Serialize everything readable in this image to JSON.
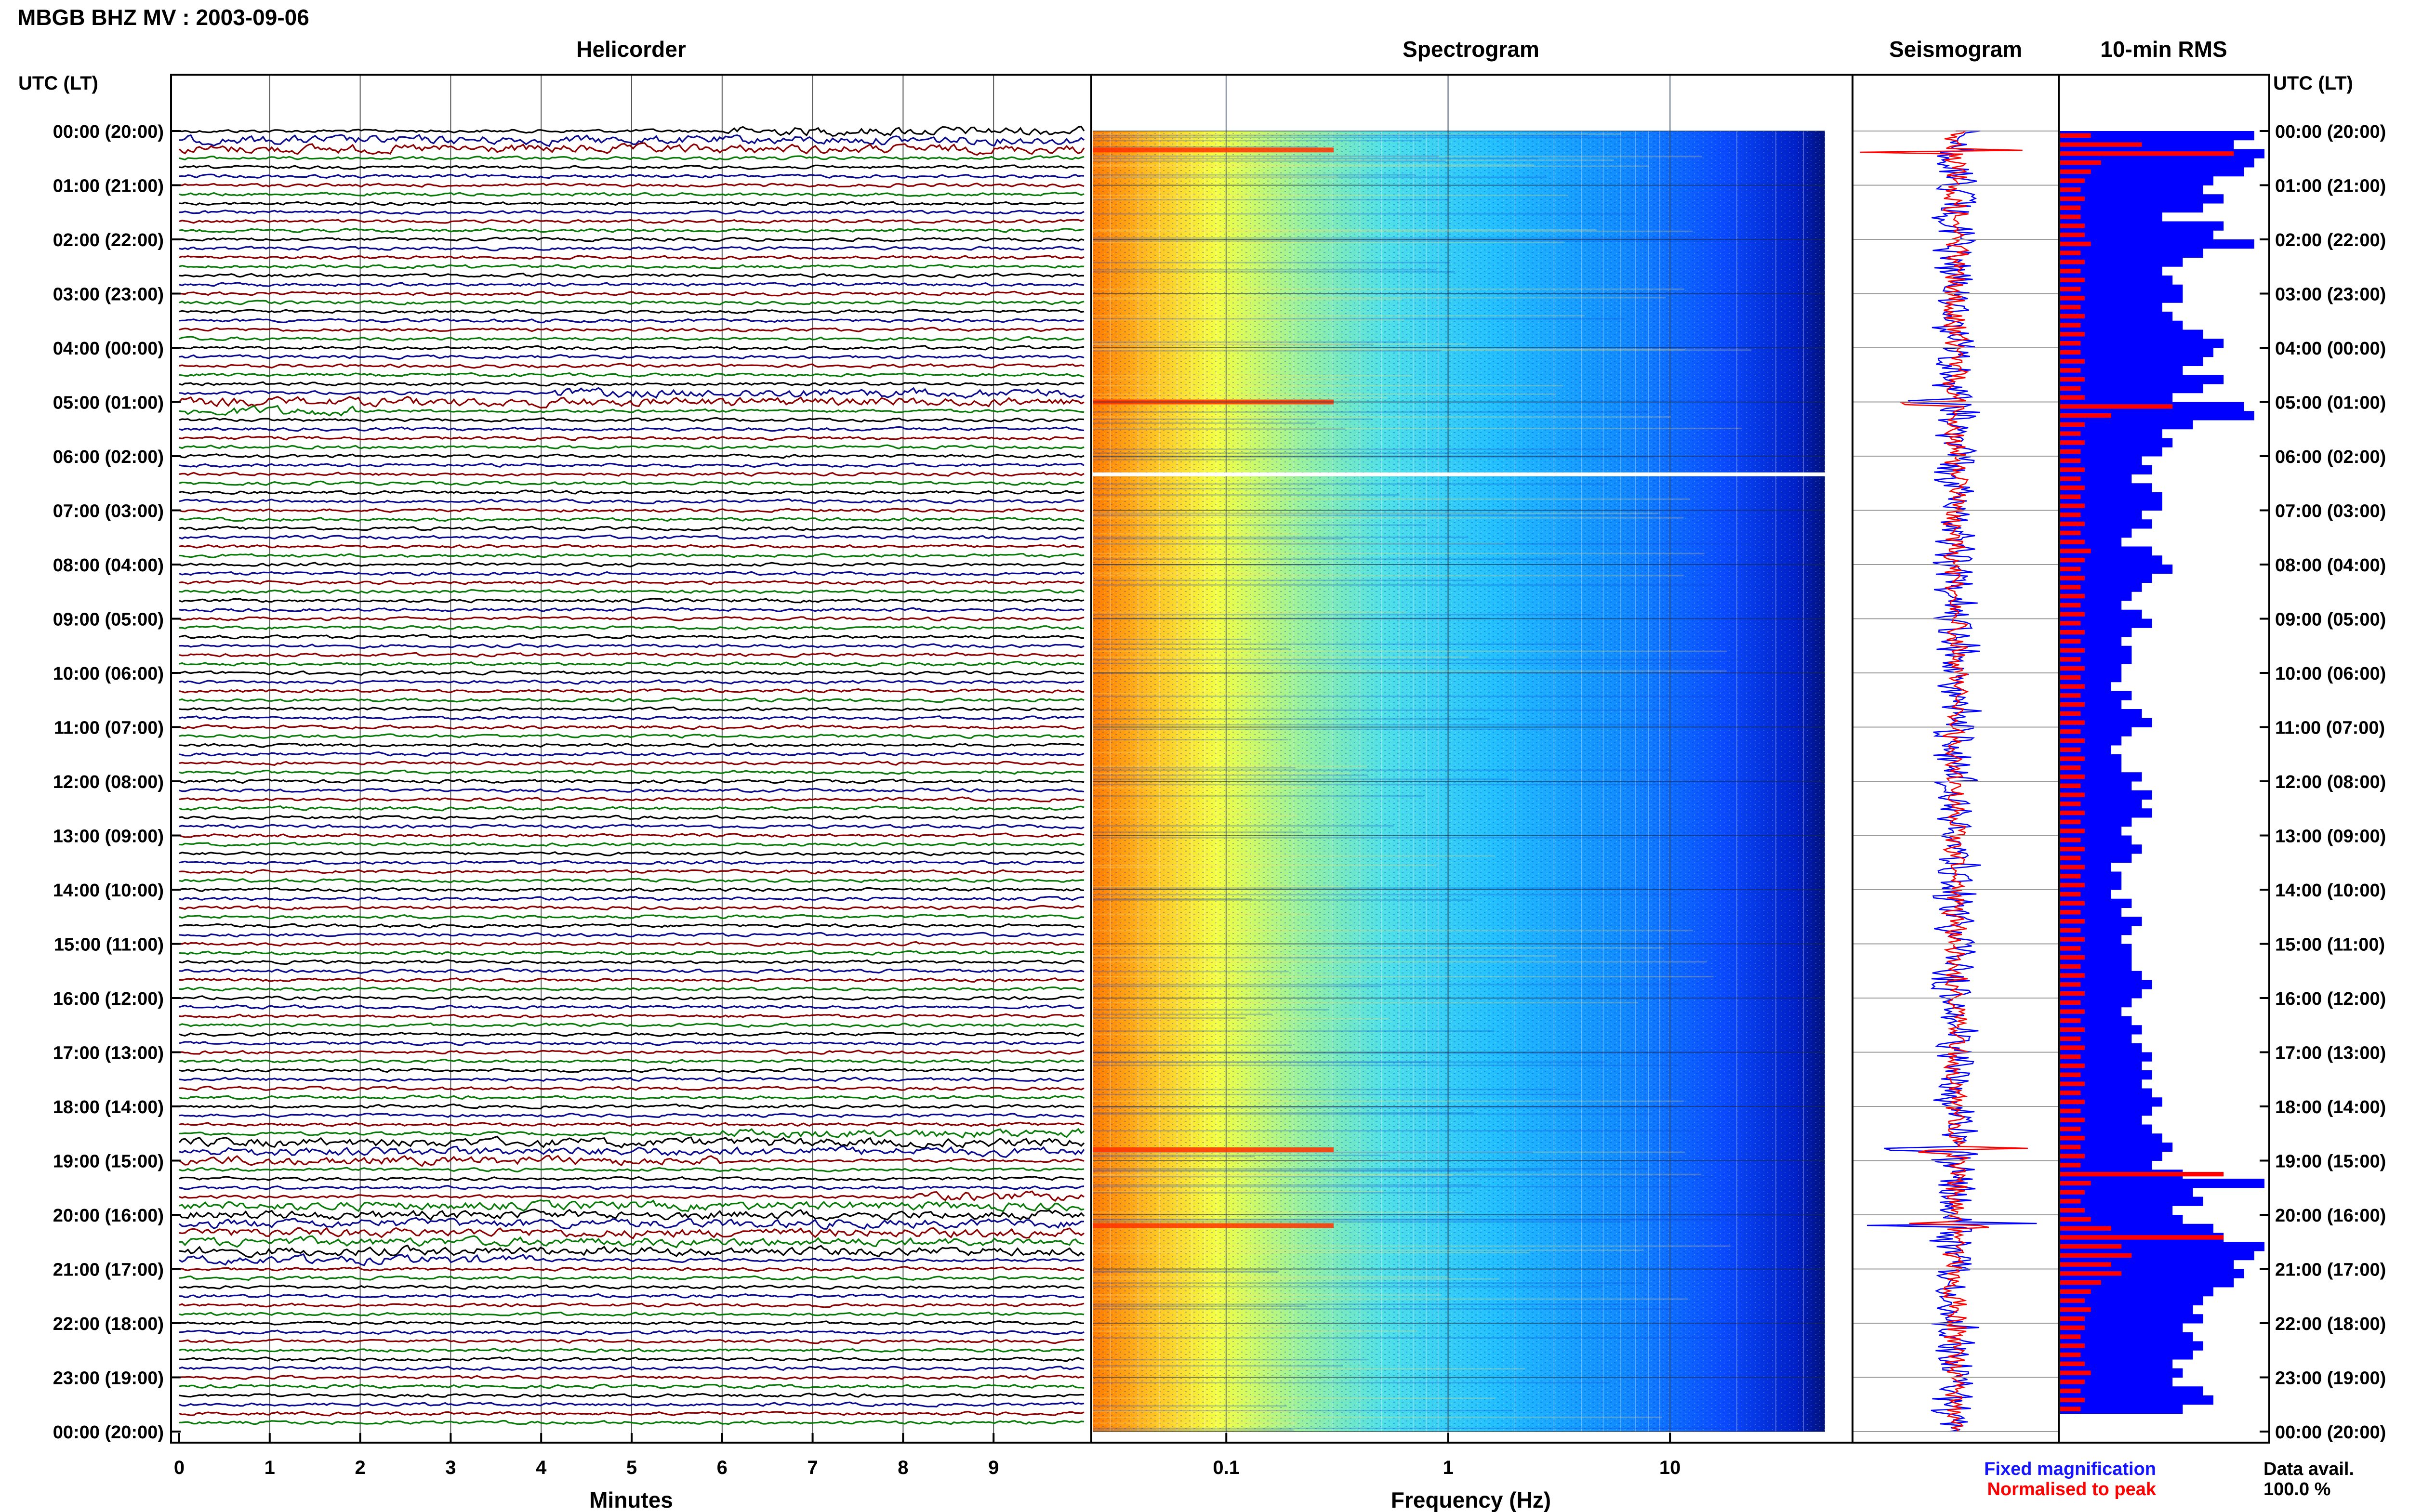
{
  "header": {
    "station_title": "MBGB BHZ MV : 2003-09-06"
  },
  "panels": {
    "helicorder_title": "Helicorder",
    "spectrogram_title": "Spectrogram",
    "seismogram_title": "Seismogram",
    "rms_title": "10-min RMS"
  },
  "axes": {
    "time_axis_label_left": "UTC (LT)",
    "time_axis_label_right": "UTC (LT)",
    "helicorder_xlabel": "Minutes",
    "spectrogram_xlabel": "Frequency (Hz)"
  },
  "legend": {
    "fixed": "Fixed magnification",
    "normalised": "Normalised to peak",
    "fixed_color": "#1414ff",
    "normalised_color": "#ff0000"
  },
  "availability": {
    "label": "Data avail.",
    "value": "100.0 %"
  },
  "colors": {
    "helicorder_trace_cycle": [
      "#000000",
      "#0a0a8c",
      "#8b0000",
      "#0a7a0a"
    ],
    "spectrogram_ramp": [
      "#00007a",
      "#0000ff",
      "#0090ff",
      "#20d8ff",
      "#9cf0a0",
      "#ffff30",
      "#ffb000",
      "#ff3000"
    ],
    "rms_fixed": "#0000ff",
    "rms_normalised": "#ff0000",
    "seismogram_fixed": "#0000ff",
    "seismogram_normalised": "#ff0000"
  },
  "chart_data": [
    {
      "type": "line",
      "panel": "helicorder",
      "title": "Helicorder",
      "xlabel": "Minutes",
      "x_ticks": [
        "0",
        "1",
        "2",
        "3",
        "4",
        "5",
        "6",
        "7",
        "8",
        "9"
      ],
      "xlim": [
        0,
        10
      ],
      "y_tick_labels": [
        "00:00 (20:00)",
        "01:00 (21:00)",
        "02:00 (22:00)",
        "03:00 (23:00)",
        "04:00 (00:00)",
        "05:00 (01:00)",
        "06:00 (02:00)",
        "07:00 (03:00)",
        "08:00 (04:00)",
        "09:00 (05:00)",
        "10:00 (06:00)",
        "11:00 (07:00)",
        "12:00 (08:00)",
        "13:00 (09:00)",
        "14:00 (10:00)",
        "15:00 (11:00)",
        "16:00 (12:00)",
        "17:00 (13:00)",
        "18:00 (14:00)",
        "19:00 (15:00)",
        "20:00 (16:00)",
        "21:00 (17:00)",
        "22:00 (18:00)",
        "23:00 (19:00)",
        "00:00 (20:00)"
      ],
      "lines_per_hour": 6,
      "event_windows_utc_hours": [
        [
          0.1,
          0.5
        ],
        [
          4.9,
          5.2
        ],
        [
          18.6,
          19.1
        ],
        [
          19.8,
          20.9
        ]
      ]
    },
    {
      "type": "heatmap",
      "panel": "spectrogram",
      "title": "Spectrogram",
      "xlabel": "Frequency (Hz)",
      "x_scale": "log",
      "xlim": [
        0.025,
        50
      ],
      "x_tick_labels": [
        "0.1",
        "1",
        "10"
      ],
      "x_tick_values": [
        0.1,
        1,
        10
      ],
      "data_gap_utc_hours": [
        6.3,
        6.4
      ],
      "broadband_events_utc_hours": [
        0.35,
        5.0,
        18.8,
        20.2
      ]
    },
    {
      "type": "line",
      "panel": "seismogram",
      "title": "Seismogram",
      "series": [
        {
          "name": "Fixed magnification"
        },
        {
          "name": "Normalised to peak"
        }
      ],
      "spikes_utc_hours": [
        0.35,
        5.0,
        18.8,
        20.2
      ]
    },
    {
      "type": "bar",
      "panel": "rms",
      "title": "10-min RMS",
      "orientation": "horizontal",
      "bins_per_hour": 6,
      "series": [
        {
          "name": "Fixed magnification",
          "values": [
            0.95,
            0.85,
            1.0,
            0.95,
            0.9,
            0.75,
            0.7,
            0.8,
            0.7,
            0.5,
            0.8,
            0.75,
            0.95,
            0.7,
            0.6,
            0.5,
            0.55,
            0.6,
            0.6,
            0.5,
            0.55,
            0.6,
            0.7,
            0.8,
            0.75,
            0.7,
            0.6,
            0.8,
            0.7,
            0.55,
            0.9,
            0.95,
            0.65,
            0.5,
            0.55,
            0.5,
            0.4,
            0.45,
            0.35,
            0.45,
            0.5,
            0.5,
            0.4,
            0.45,
            0.35,
            0.3,
            0.45,
            0.5,
            0.55,
            0.45,
            0.4,
            0.35,
            0.3,
            0.4,
            0.45,
            0.35,
            0.3,
            0.35,
            0.35,
            0.3,
            0.3,
            0.25,
            0.35,
            0.3,
            0.4,
            0.45,
            0.35,
            0.3,
            0.25,
            0.3,
            0.3,
            0.4,
            0.35,
            0.45,
            0.4,
            0.45,
            0.35,
            0.3,
            0.35,
            0.4,
            0.35,
            0.25,
            0.3,
            0.3,
            0.25,
            0.35,
            0.3,
            0.4,
            0.35,
            0.3,
            0.35,
            0.35,
            0.35,
            0.4,
            0.45,
            0.4,
            0.35,
            0.3,
            0.35,
            0.4,
            0.35,
            0.4,
            0.45,
            0.4,
            0.45,
            0.4,
            0.45,
            0.5,
            0.45,
            0.4,
            0.45,
            0.5,
            0.55,
            0.5,
            0.45,
            0.6,
            1.0,
            0.65,
            0.7,
            0.55,
            0.6,
            0.75,
            0.8,
            1.0,
            0.95,
            0.85,
            0.9,
            0.85,
            0.75,
            0.7,
            0.65,
            0.7,
            0.6,
            0.65,
            0.7,
            0.65,
            0.55,
            0.6,
            0.55,
            0.7,
            0.75,
            0.6
          ],
          "color": "#0000ff"
        },
        {
          "name": "Normalised to peak",
          "values": [
            0.15,
            0.4,
            0.85,
            0.2,
            0.15,
            0.12,
            0.1,
            0.12,
            0.1,
            0.1,
            0.12,
            0.12,
            0.15,
            0.1,
            0.12,
            0.1,
            0.12,
            0.1,
            0.12,
            0.1,
            0.12,
            0.1,
            0.12,
            0.1,
            0.1,
            0.12,
            0.1,
            0.12,
            0.1,
            0.12,
            0.55,
            0.25,
            0.12,
            0.1,
            0.12,
            0.1,
            0.1,
            0.12,
            0.1,
            0.12,
            0.1,
            0.12,
            0.1,
            0.12,
            0.1,
            0.12,
            0.15,
            0.12,
            0.1,
            0.12,
            0.1,
            0.12,
            0.1,
            0.12,
            0.1,
            0.12,
            0.1,
            0.12,
            0.1,
            0.12,
            0.1,
            0.12,
            0.1,
            0.12,
            0.1,
            0.12,
            0.1,
            0.12,
            0.1,
            0.12,
            0.1,
            0.12,
            0.1,
            0.12,
            0.1,
            0.12,
            0.1,
            0.12,
            0.1,
            0.12,
            0.1,
            0.12,
            0.1,
            0.12,
            0.1,
            0.12,
            0.1,
            0.12,
            0.1,
            0.12,
            0.1,
            0.12,
            0.1,
            0.12,
            0.1,
            0.12,
            0.1,
            0.12,
            0.1,
            0.12,
            0.1,
            0.12,
            0.1,
            0.12,
            0.1,
            0.12,
            0.1,
            0.12,
            0.1,
            0.12,
            0.1,
            0.12,
            0.1,
            0.12,
            0.1,
            0.8,
            0.15,
            0.12,
            0.1,
            0.12,
            0.15,
            0.25,
            0.8,
            0.3,
            0.35,
            0.25,
            0.3,
            0.2,
            0.15,
            0.12,
            0.15,
            0.12,
            0.12,
            0.1,
            0.12,
            0.1,
            0.12,
            0.15,
            0.12,
            0.1,
            0.12,
            0.1
          ],
          "color": "#ff0000"
        }
      ]
    }
  ]
}
